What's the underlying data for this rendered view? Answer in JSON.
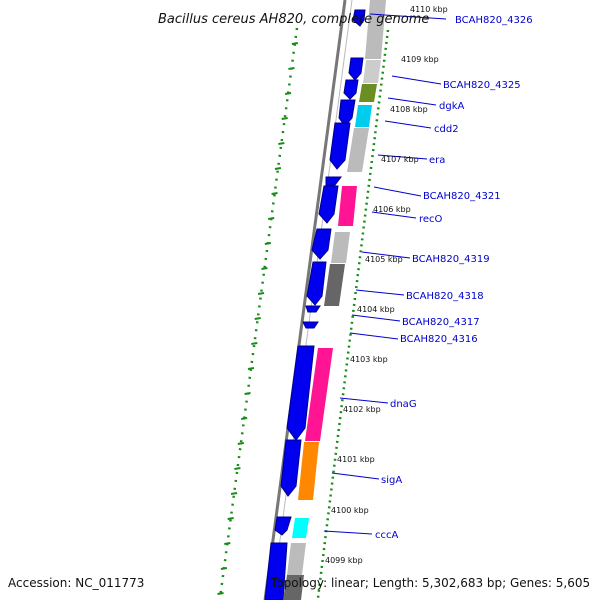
{
  "title": "Bacillus cereus AH820, complete genome",
  "accession": "Accession: NC_011773",
  "summary": "Topology: linear; Length: 5,302,683 bp; Genes: 5,605",
  "colors": {
    "cds": "#0000ee",
    "cds_edge": "#00008b",
    "gene_label": "#0000cc",
    "tick_green": "#1a8c1a",
    "gray_dark": "#666666",
    "gray_mid": "#aaaaaa",
    "pink": "#ff1493",
    "orange": "#ff8800",
    "cyan": "#00ffff",
    "sky": "#00ccee",
    "olive": "#6b8e23"
  },
  "kbp_ticks": [
    "4110 kbp",
    "4109 kbp",
    "4108 kbp",
    "4107 kbp",
    "4106 kbp",
    "4105 kbp",
    "4104 kbp",
    "4103 kbp",
    "4102 kbp",
    "4101 kbp",
    "4100 kbp",
    "4099 kbp"
  ],
  "genes": [
    {
      "name": "BCAH820_4326",
      "category": "gray"
    },
    {
      "name": "BCAH820_4325",
      "category": "olive"
    },
    {
      "name": "dgkA",
      "category": "sky"
    },
    {
      "name": "cdd2",
      "category": "gray"
    },
    {
      "name": "era",
      "category": "gray"
    },
    {
      "name": "BCAH820_4321",
      "category": "pink"
    },
    {
      "name": "recO",
      "category": "pink"
    },
    {
      "name": "BCAH820_4319",
      "category": "gray"
    },
    {
      "name": "BCAH820_4318",
      "category": "gray-dark"
    },
    {
      "name": "BCAH820_4317",
      "category": "none"
    },
    {
      "name": "BCAH820_4316",
      "category": "none"
    },
    {
      "name": "dnaG",
      "category": "pink"
    },
    {
      "name": "sigA",
      "category": "orange"
    },
    {
      "name": "cccA",
      "category": "cyan"
    }
  ]
}
